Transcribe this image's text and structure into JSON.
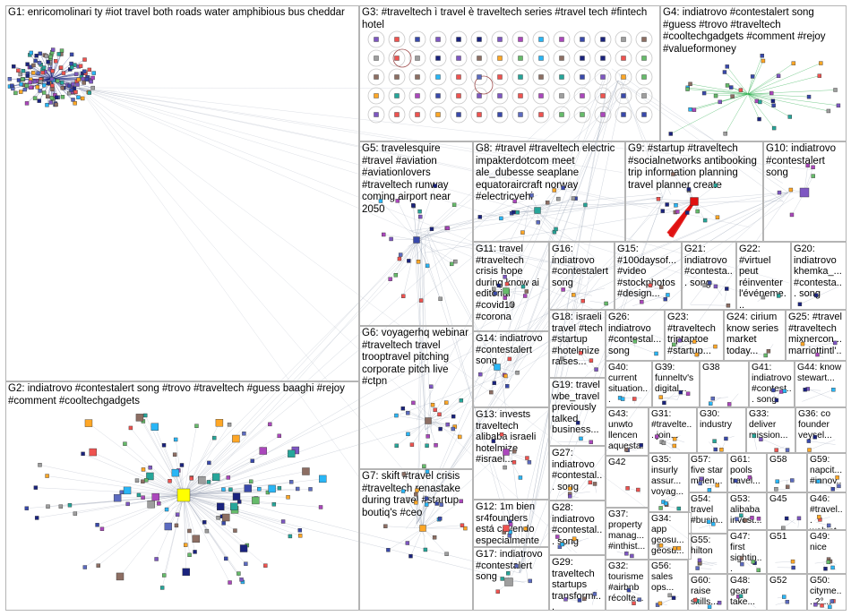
{
  "groups": [
    {
      "id": "G1",
      "label": "G1: enricomolinari ty #iot travel both roads water amphibious bus cheddar"
    },
    {
      "id": "G2",
      "label": "G2: indiatrovo #contestalert song #trovo #traveltech #guess baaghi #rejoy #comment #cooltechgadgets"
    },
    {
      "id": "G3",
      "label": "G3: #traveltech ì travel è traveltech series #travel tech #fintech hotel"
    },
    {
      "id": "G4",
      "label": "G4: indiatrovo #contestalert song #guess #trovo #traveltech #cooltechgadgets #comment #rejoy #valueformoney"
    },
    {
      "id": "G5",
      "label": "G5: travelesquire #travel #aviation #aviationlovers #traveltech runway coming airport near 2050"
    },
    {
      "id": "G6",
      "label": "G6: voyagerhq webinar #traveltech travel trooptravel pitching corporate pitch live #ctpn"
    },
    {
      "id": "G7",
      "label": "G7: skift #travel crisis #traveltech renastake during travel #startup boutiq's #ceo"
    },
    {
      "id": "G8",
      "label": "G8: #travel #traveltech electric impakterdotcom meet ale_dubesse seaplane equatoraircraft norway #electricvehi"
    },
    {
      "id": "G9",
      "label": "G9: #startup #traveltech #socialnetworks antibooking trip information planning travel planner create"
    },
    {
      "id": "G10",
      "label": "G10: indiatrovo #contestalert song"
    },
    {
      "id": "G11",
      "label": "G11: travel #traveltech crisis hope during know ai editorial #covid19 #corona"
    },
    {
      "id": "G12",
      "label": "G12: 1m bien sr4founders está cayendo especialmente sector turí..."
    },
    {
      "id": "G13",
      "label": "G13: invests traveltech alibaba israeli hotelmize #israel..."
    },
    {
      "id": "G14",
      "label": "G14: indiatrovo #contestalert song"
    },
    {
      "id": "G15",
      "label": "G15: #100daysof... #video #stockphotos #design..."
    },
    {
      "id": "G16",
      "label": "G16: indiatrovo #contestalert song"
    },
    {
      "id": "G17",
      "label": "G17: indiatrovo #contestalert song"
    },
    {
      "id": "G18",
      "label": "G18: israeli travel #tech #startup #hotelmize raises..."
    },
    {
      "id": "G19",
      "label": "G19: travel wbe_travel previously talked business..."
    },
    {
      "id": "G20",
      "label": "G20: indiatrovo khemka_... #contesta... song"
    },
    {
      "id": "G21",
      "label": "G21: indiatrovo #contesta... song"
    },
    {
      "id": "G22",
      "label": "G22: #virtuel peut réinventer l'événeme..."
    },
    {
      "id": "G23",
      "label": "G23: #traveltech triptaptoe #startup..."
    },
    {
      "id": "G24",
      "label": "G24: cirium know series market today..."
    },
    {
      "id": "G25",
      "label": "G25: #travel #traveltech mixnercon... marriottintl'..."
    },
    {
      "id": "G26",
      "label": "G26: indiatrovo #contestal... song"
    },
    {
      "id": "G27",
      "label": "G27: indiatrovo #contestal... song"
    },
    {
      "id": "G28",
      "label": "G28: indiatrovo #contestal... song"
    },
    {
      "id": "G29",
      "label": "G29: traveltech startups transformi..."
    },
    {
      "id": "G30",
      "label": "G30: industry"
    },
    {
      "id": "G31",
      "label": "G31: #travelte... join..."
    },
    {
      "id": "G32",
      "label": "G32: tourisme #airbnb récolte..."
    },
    {
      "id": "G33",
      "label": "G33: deliver mission..."
    },
    {
      "id": "G34",
      "label": "G34: app geosu... geosu..."
    },
    {
      "id": "G35",
      "label": "G35: insurly assur... voyag..."
    },
    {
      "id": "G36",
      "label": "G36: co founder veysel..."
    },
    {
      "id": "G37",
      "label": "G37: property manag... #inthist..."
    },
    {
      "id": "G38",
      "label": "G38"
    },
    {
      "id": "G39",
      "label": "G39: funneltv's digital..."
    },
    {
      "id": "G40",
      "label": "G40: current situation..."
    },
    {
      "id": "G41",
      "label": "G41: indiatrovo #contest... song"
    },
    {
      "id": "G42",
      "label": "G42"
    },
    {
      "id": "G43",
      "label": "G43: unwto llencen aquesta..."
    },
    {
      "id": "G44",
      "label": "G44: know stewart..."
    },
    {
      "id": "G45",
      "label": "G45"
    },
    {
      "id": "G46",
      "label": "G46: #travel... webint..."
    },
    {
      "id": "G47",
      "label": "G47: first sightin..."
    },
    {
      "id": "G48",
      "label": "G48: gear take..."
    },
    {
      "id": "G49",
      "label": "G49: nice"
    },
    {
      "id": "G50",
      "label": "G50: cityme... 2°..."
    },
    {
      "id": "G51",
      "label": "G51"
    },
    {
      "id": "G52",
      "label": "G52"
    },
    {
      "id": "G53",
      "label": "G53: alibaba invest..."
    },
    {
      "id": "G54",
      "label": "G54: travel #busin..."
    },
    {
      "id": "G55",
      "label": "G55: hilton"
    },
    {
      "id": "G56",
      "label": "G56: sales ops..."
    },
    {
      "id": "G57",
      "label": "G57: five star millen..."
    },
    {
      "id": "G58",
      "label": "G58"
    },
    {
      "id": "G59",
      "label": "G59: napcit... #innov..."
    },
    {
      "id": "G60",
      "label": "G60: raise skills..."
    },
    {
      "id": "G61",
      "label": "G61: pools travel..."
    }
  ],
  "colors": {
    "border": "#b4b4b4",
    "edge": "#9aa3b5",
    "node_dark": "#1a237e",
    "highlight": "#ffff00",
    "accent_red": "#e01010",
    "node_green": "#22aa44"
  }
}
